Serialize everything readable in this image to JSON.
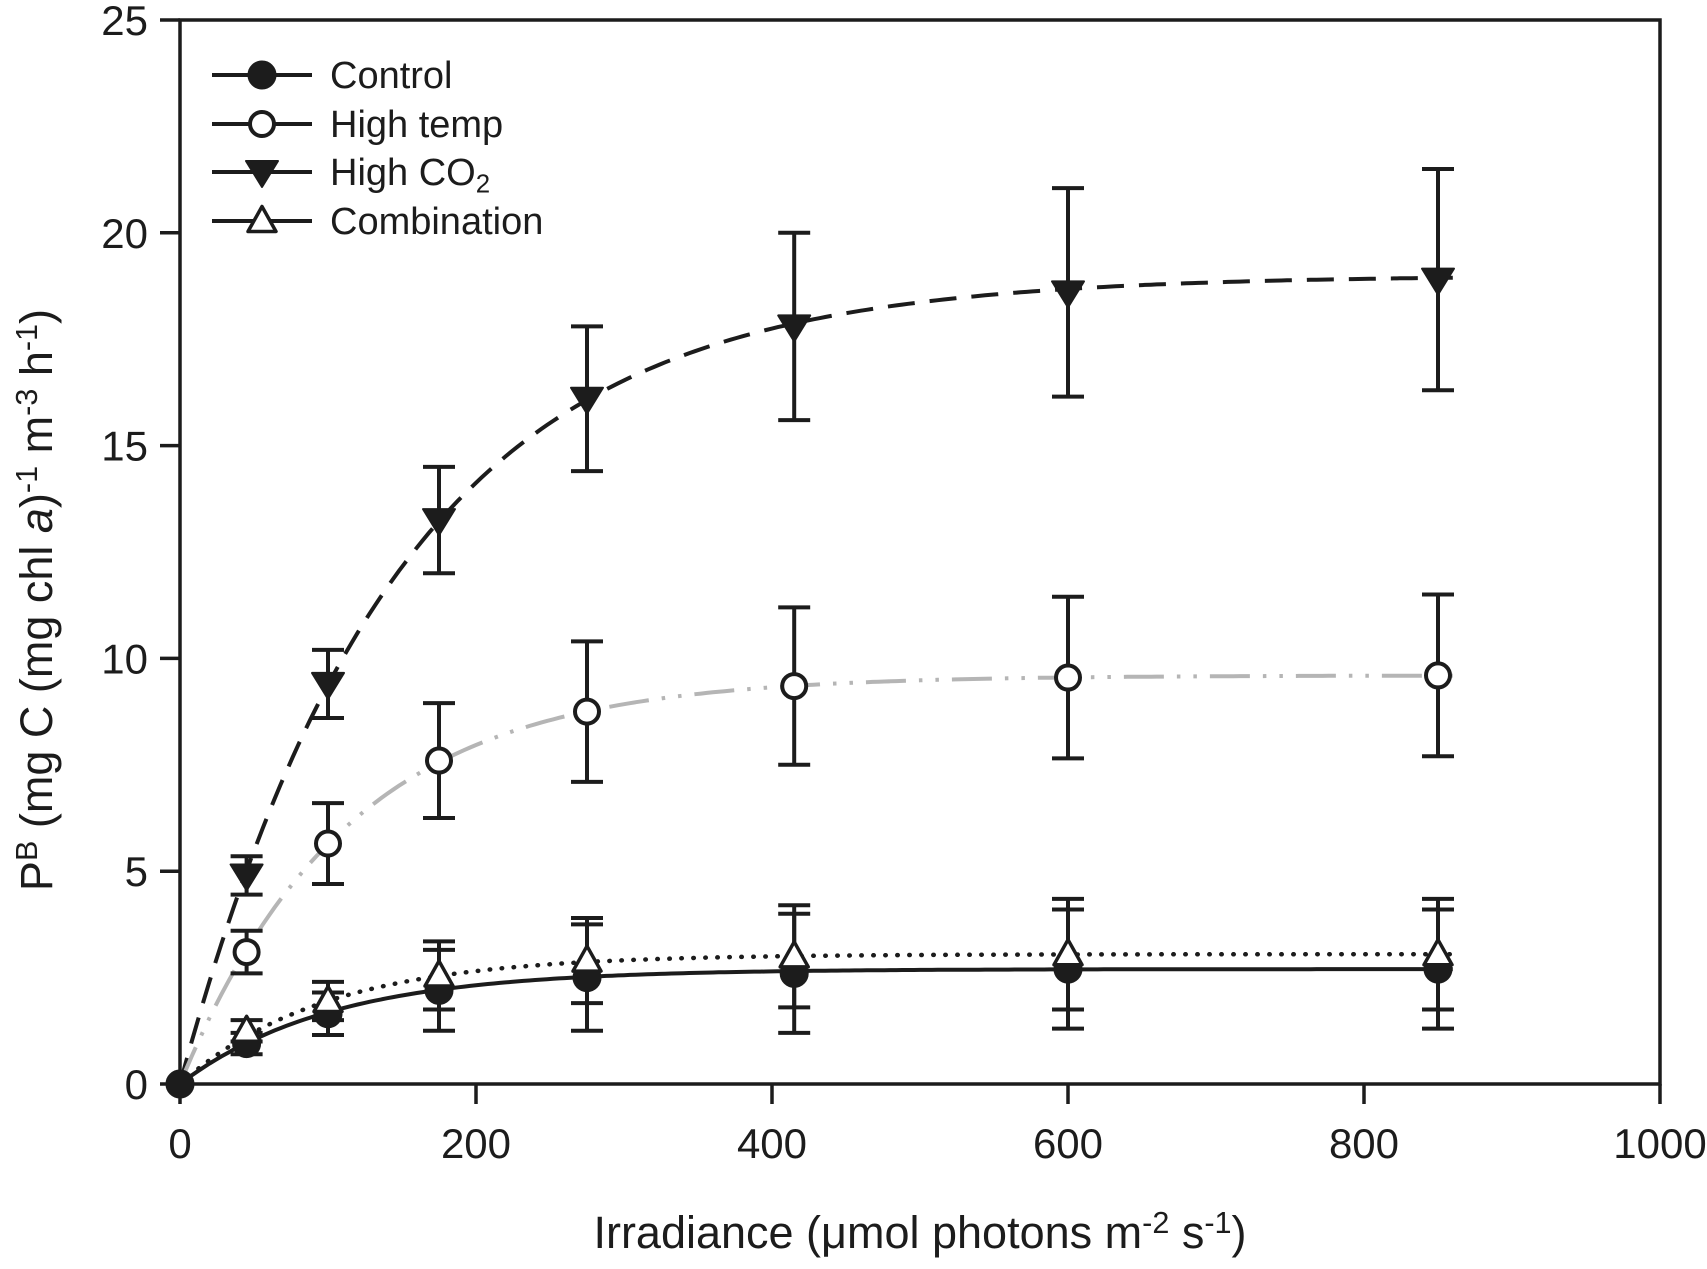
{
  "chart_data": {
    "type": "line",
    "title": "",
    "xlabel": "Irradiance (μmol photons m-2 s-1)",
    "ylabel": "PB (mg C (mg chl a)-1 m-3 h-1)",
    "xlabel_parts": [
      {
        "t": "Irradiance (μmol photons m"
      },
      {
        "t": "-2",
        "sup": true
      },
      {
        "t": " s"
      },
      {
        "t": "-1",
        "sup": true
      },
      {
        "t": ")"
      }
    ],
    "ylabel_parts": [
      {
        "t": "P"
      },
      {
        "t": "B",
        "sup": true
      },
      {
        "t": " (mg C (mg chl "
      },
      {
        "t": "a",
        "italic": true
      },
      {
        "t": ")"
      },
      {
        "t": "-1",
        "sup": true
      },
      {
        "t": " m"
      },
      {
        "t": "-3",
        "sup": true
      },
      {
        "t": " h"
      },
      {
        "t": "-1",
        "sup": true
      },
      {
        "t": ")"
      }
    ],
    "xlim": [
      0,
      1000
    ],
    "ylim": [
      0,
      25
    ],
    "xticks": [
      0,
      200,
      400,
      600,
      800,
      1000
    ],
    "yticks": [
      0,
      5,
      10,
      15,
      20,
      25
    ],
    "grid": false,
    "legend_position": "top-left-inside",
    "x": [
      0,
      45,
      100,
      175,
      275,
      415,
      600,
      850
    ],
    "series": [
      {
        "name": "Control",
        "label_parts": [
          {
            "t": "Control"
          }
        ],
        "marker": "circle-filled",
        "line_style": "solid",
        "color": "#1c1c1c",
        "y": [
          0,
          0.95,
          1.65,
          2.2,
          2.5,
          2.6,
          2.7,
          2.7
        ],
        "err": [
          0,
          0.25,
          0.5,
          0.95,
          1.25,
          1.4,
          1.4,
          1.4
        ],
        "fit": {
          "model": "P = Pmax*(1-exp(-I/k))",
          "pmax": 2.7,
          "k": 102
        }
      },
      {
        "name": "High temp",
        "label_parts": [
          {
            "t": "High temp"
          }
        ],
        "marker": "circle-open",
        "line_style": "dash-dot-dot",
        "color": "#b5b5b5",
        "y": [
          0,
          3.1,
          5.65,
          7.6,
          8.75,
          9.35,
          9.55,
          9.6
        ],
        "err": [
          0,
          0.5,
          0.95,
          1.35,
          1.65,
          1.85,
          1.9,
          1.9
        ],
        "fit": {
          "model": "P = Pmax*(1-exp(-I/k))",
          "pmax": 9.6,
          "k": 113
        }
      },
      {
        "name": "High CO2",
        "label_parts": [
          {
            "t": "High CO"
          },
          {
            "t": "2",
            "sub": true
          }
        ],
        "marker": "triangle-down-filled",
        "line_style": "dashed",
        "color": "#1c1c1c",
        "y": [
          0,
          4.9,
          9.4,
          13.25,
          16.1,
          17.8,
          18.6,
          18.9
        ],
        "err": [
          0,
          0.45,
          0.8,
          1.25,
          1.7,
          2.2,
          2.45,
          2.6
        ],
        "fit": {
          "model": "P = Pmax*(1-exp(-I/k))",
          "pmax": 19.0,
          "k": 147
        }
      },
      {
        "name": "Combination",
        "label_parts": [
          {
            "t": "Combination"
          }
        ],
        "marker": "triangle-up-open",
        "line_style": "dotted",
        "color": "#1c1c1c",
        "y": [
          0,
          1.25,
          1.95,
          2.55,
          2.9,
          3.0,
          3.05,
          3.05
        ],
        "err": [
          0,
          0.25,
          0.45,
          0.8,
          1.0,
          1.2,
          1.3,
          1.3
        ],
        "fit": {
          "model": "P = Pmax*(1-exp(-I/k))",
          "pmax": 3.05,
          "k": 98
        }
      }
    ],
    "errorbars": {
      "style": "vertical-with-caps",
      "color": "#1c1c1c"
    }
  },
  "colors": {
    "axis": "#1c1c1c",
    "gray_line": "#b5b5b5",
    "background": "#ffffff"
  }
}
